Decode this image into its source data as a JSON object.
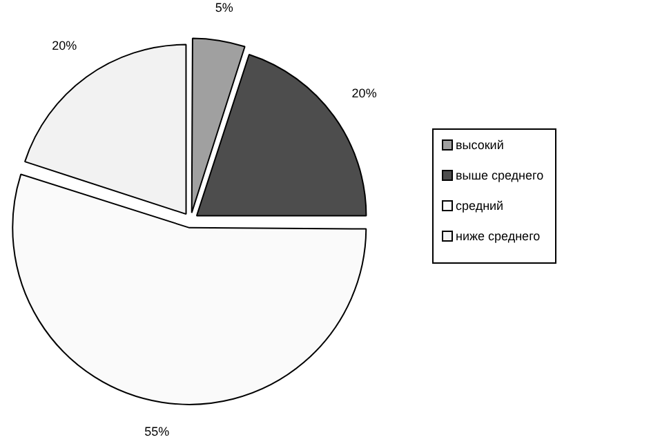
{
  "chart_data": {
    "type": "pie",
    "categories": [
      "высокий",
      "выше среднего",
      "средний",
      "ниже среднего"
    ],
    "values": [
      5,
      20,
      55,
      20
    ],
    "value_labels": [
      "5%",
      "20%",
      "55%",
      "20%"
    ],
    "colors": [
      "#a0a0a0",
      "#4d4d4d",
      "#fafafa",
      "#f2f2f2"
    ],
    "legend": "right"
  }
}
